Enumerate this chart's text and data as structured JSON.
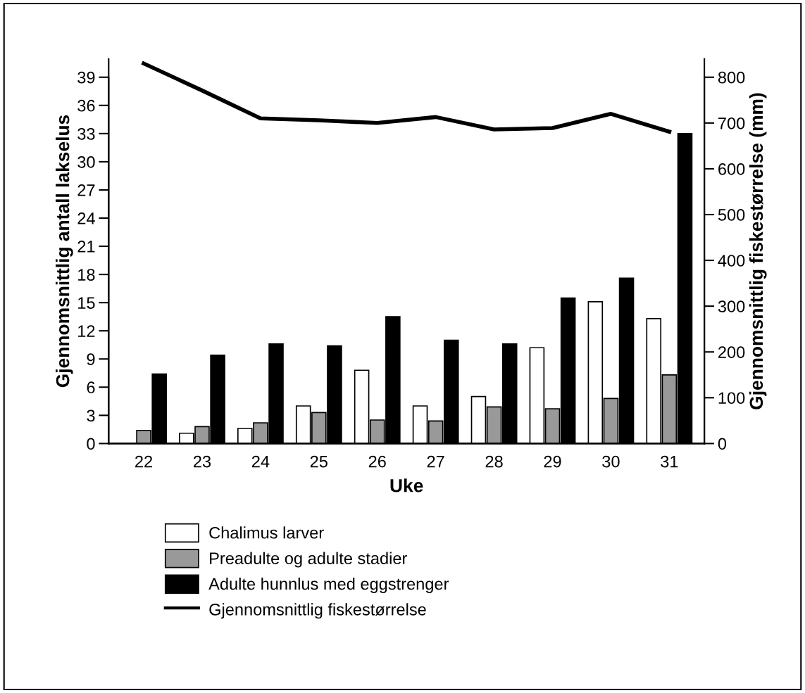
{
  "chart_data": {
    "type": "bar",
    "xlabel": "Uke",
    "ylabel": "Gjennomsnittlig antall lakselus",
    "y2label": "Gjennomsnittlig fiskestørrelse (mm)",
    "categories": [
      "22",
      "23",
      "24",
      "25",
      "26",
      "27",
      "28",
      "29",
      "30",
      "31"
    ],
    "series": [
      {
        "name": "Chalimus larver",
        "color": "#ffffff",
        "values": [
          null,
          1.1,
          1.6,
          4.0,
          7.8,
          4.0,
          5.0,
          10.2,
          15.1,
          13.3
        ]
      },
      {
        "name": "Preadulte og adulte stadier",
        "color": "#999999",
        "values": [
          1.4,
          1.8,
          2.2,
          3.3,
          2.5,
          2.4,
          3.9,
          3.7,
          4.8,
          7.3
        ]
      },
      {
        "name": "Adulte hunnlus med eggstrenger",
        "color": "#000000",
        "values": [
          7.4,
          9.4,
          10.6,
          10.4,
          13.5,
          11.0,
          10.6,
          15.5,
          17.6,
          33.0
        ]
      },
      {
        "name": "Gjennomsnittlig fiskestørrelse",
        "type": "line",
        "axis": "y2",
        "color": "#000000",
        "values": [
          830,
          771,
          710,
          706,
          700,
          713,
          686,
          689,
          720,
          681
        ]
      }
    ],
    "ylim": [
      0,
      40.95
    ],
    "yticks": [
      0,
      3,
      6,
      9,
      12,
      15,
      18,
      21,
      24,
      27,
      30,
      33,
      36,
      39
    ],
    "y2lim": [
      0,
      840
    ],
    "y2ticks": [
      0,
      100,
      200,
      300,
      400,
      500,
      600,
      700,
      800
    ],
    "grid": false,
    "legend": "bottom",
    "line_style": "solid",
    "marker": "none"
  }
}
